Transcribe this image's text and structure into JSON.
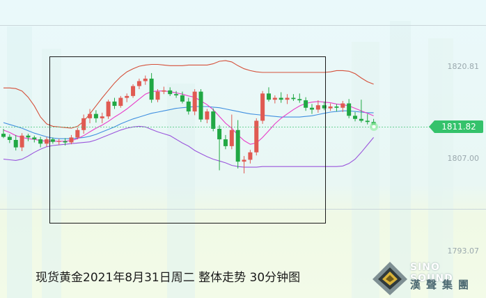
{
  "caption": "现货黄金2021年8月31日周二 整体走势 30分钟图",
  "price_labels": {
    "top": "1820.81",
    "mid": "1807.00",
    "bottom": "1793.07"
  },
  "current_price": "1811.82",
  "logo": {
    "en": "SINO SOUND",
    "cn": "漢聲集團"
  },
  "colors": {
    "up": "#e05a52",
    "down": "#21a844",
    "upper_band": "#d5503a",
    "mid_band": "#3f8fe0",
    "lower_band": "#9a55dc",
    "ma": "#e83cc8",
    "ma_alt": "#f08a5c",
    "price_tag": "#34c26b"
  },
  "chart_data": {
    "type": "candlestick",
    "title": "现货黄金2021年8月31日周二 整体走势 30分钟图",
    "ylabels": [
      1820.81,
      1807.0,
      1793.07
    ],
    "ylim": [
      1790.4,
      1827.5
    ],
    "current_price": 1811.82,
    "indicators": [
      "upper_band",
      "mid_band",
      "lower_band",
      "moving_average"
    ],
    "candles": [
      [
        1810.4,
        1811.2,
        1809.7,
        1809.9
      ],
      [
        1809.9,
        1810.3,
        1808.9,
        1809.4
      ],
      [
        1809.4,
        1810.2,
        1807.7,
        1808.2
      ],
      [
        1808.2,
        1810.5,
        1807.6,
        1810.1
      ],
      [
        1810.1,
        1810.4,
        1809.2,
        1809.8
      ],
      [
        1809.8,
        1810.1,
        1809.0,
        1809.5
      ],
      [
        1809.5,
        1809.9,
        1808.2,
        1808.8
      ],
      [
        1808.8,
        1809.9,
        1808.3,
        1809.5
      ],
      [
        1809.5,
        1809.8,
        1808.8,
        1809.1
      ],
      [
        1809.1,
        1809.6,
        1808.6,
        1809.2
      ],
      [
        1809.2,
        1809.7,
        1808.5,
        1809.0
      ],
      [
        1809.0,
        1810.2,
        1808.7,
        1809.8
      ],
      [
        1809.8,
        1811.4,
        1809.5,
        1811.0
      ],
      [
        1811.0,
        1813.5,
        1810.4,
        1812.9
      ],
      [
        1812.9,
        1814.4,
        1812.1,
        1813.6
      ],
      [
        1813.6,
        1814.2,
        1812.2,
        1812.9
      ],
      [
        1812.9,
        1813.8,
        1812.1,
        1813.2
      ],
      [
        1813.2,
        1815.9,
        1812.8,
        1815.6
      ],
      [
        1815.6,
        1816.2,
        1814.4,
        1814.9
      ],
      [
        1814.9,
        1816.5,
        1814.6,
        1816.2
      ],
      [
        1816.2,
        1816.9,
        1815.5,
        1816.5
      ],
      [
        1816.5,
        1818.4,
        1816.2,
        1818.1
      ],
      [
        1818.1,
        1819.3,
        1817.6,
        1818.9
      ],
      [
        1818.9,
        1819.8,
        1818.3,
        1819.3
      ],
      [
        1819.3,
        1820.2,
        1815.4,
        1815.9
      ],
      [
        1815.9,
        1817.6,
        1815.5,
        1817.2
      ],
      [
        1817.2,
        1818.0,
        1816.8,
        1817.4
      ],
      [
        1817.4,
        1817.9,
        1816.5,
        1816.8
      ],
      [
        1816.8,
        1817.3,
        1816.2,
        1816.6
      ],
      [
        1816.6,
        1817.2,
        1815.3,
        1815.6
      ],
      [
        1815.6,
        1816.2,
        1813.5,
        1814.0
      ],
      [
        1814.0,
        1817.6,
        1813.4,
        1817.2
      ],
      [
        1817.2,
        1817.6,
        1812.3,
        1812.7
      ],
      [
        1812.7,
        1814.4,
        1812.1,
        1814.0
      ],
      [
        1814.0,
        1814.5,
        1810.8,
        1811.2
      ],
      [
        1811.2,
        1811.8,
        1804.5,
        1809.5
      ],
      [
        1809.5,
        1810.2,
        1807.9,
        1808.4
      ],
      [
        1808.4,
        1813.5,
        1807.9,
        1811.0
      ],
      [
        1811.0,
        1812.6,
        1804.8,
        1805.9
      ],
      [
        1805.9,
        1806.8,
        1804.0,
        1806.2
      ],
      [
        1806.2,
        1807.8,
        1805.6,
        1807.4
      ],
      [
        1807.4,
        1812.9,
        1806.9,
        1812.5
      ],
      [
        1812.5,
        1817.3,
        1812.0,
        1816.9
      ],
      [
        1816.9,
        1817.9,
        1815.6,
        1815.9
      ],
      [
        1815.9,
        1816.6,
        1815.3,
        1816.2
      ],
      [
        1816.2,
        1817.1,
        1815.4,
        1815.9
      ],
      [
        1815.9,
        1816.8,
        1815.2,
        1816.2
      ],
      [
        1816.2,
        1816.8,
        1815.7,
        1816.0
      ],
      [
        1816.0,
        1816.9,
        1815.4,
        1815.8
      ],
      [
        1815.8,
        1816.3,
        1814.1,
        1814.6
      ],
      [
        1814.6,
        1815.2,
        1813.6,
        1814.3
      ],
      [
        1814.3,
        1815.8,
        1813.8,
        1815.0
      ],
      [
        1815.0,
        1815.6,
        1814.2,
        1814.5
      ],
      [
        1814.5,
        1815.3,
        1814.1,
        1814.8
      ],
      [
        1814.8,
        1815.2,
        1814.0,
        1814.6
      ],
      [
        1814.6,
        1815.7,
        1813.9,
        1815.3
      ],
      [
        1815.3,
        1816.0,
        1812.9,
        1813.3
      ],
      [
        1813.3,
        1813.9,
        1812.4,
        1812.8
      ],
      [
        1812.8,
        1815.9,
        1812.2,
        1812.5
      ],
      [
        1812.5,
        1813.6,
        1811.9,
        1812.3
      ],
      [
        1812.3,
        1812.8,
        1811.5,
        1811.82
      ]
    ],
    "upper_band": [
      1817.8,
      1817.8,
      1817.7,
      1817.3,
      1816.3,
      1814.9,
      1813.1,
      1812.0,
      1811.6,
      1811.5,
      1811.4,
      1811.3,
      1811.6,
      1812.4,
      1813.6,
      1814.9,
      1816.2,
      1817.4,
      1818.6,
      1819.6,
      1820.4,
      1820.9,
      1821.3,
      1821.5,
      1821.6,
      1821.6,
      1821.5,
      1821.4,
      1821.4,
      1821.4,
      1821.5,
      1821.5,
      1821.5,
      1821.5,
      1821.7,
      1822.1,
      1822.2,
      1822.0,
      1821.4,
      1820.9,
      1820.6,
      1820.4,
      1820.3,
      1820.3,
      1820.3,
      1820.3,
      1820.3,
      1820.3,
      1820.3,
      1820.3,
      1820.3,
      1820.3,
      1820.3,
      1820.4,
      1820.6,
      1820.6,
      1820.5,
      1820.1,
      1819.4,
      1818.8,
      1818.4
    ],
    "mid_band": [
      1812.2,
      1811.9,
      1811.6,
      1811.3,
      1810.9,
      1810.5,
      1810.2,
      1809.9,
      1809.7,
      1809.6,
      1809.6,
      1809.6,
      1809.7,
      1809.8,
      1810.0,
      1810.3,
      1810.7,
      1811.1,
      1811.5,
      1812.0,
      1812.4,
      1812.8,
      1813.1,
      1813.4,
      1813.7,
      1813.9,
      1814.1,
      1814.3,
      1814.5,
      1814.6,
      1814.7,
      1814.8,
      1814.8,
      1814.8,
      1814.7,
      1814.6,
      1814.4,
      1814.2,
      1814.0,
      1813.8,
      1813.6,
      1813.5,
      1813.4,
      1813.3,
      1813.2,
      1813.1,
      1813.1,
      1813.1,
      1813.1,
      1813.2,
      1813.3,
      1813.5,
      1813.7,
      1813.9,
      1814.0,
      1814.1,
      1814.1,
      1814.0,
      1813.9,
      1813.8,
      1813.8
    ],
    "lower_band": [
      1806.3,
      1806.2,
      1806.1,
      1806.3,
      1806.8,
      1807.4,
      1807.9,
      1808.3,
      1808.5,
      1808.6,
      1808.7,
      1808.8,
      1808.9,
      1809.0,
      1809.1,
      1809.4,
      1809.8,
      1810.2,
      1810.6,
      1811.0,
      1811.3,
      1811.5,
      1811.6,
      1811.5,
      1811.1,
      1810.7,
      1810.4,
      1810.1,
      1809.5,
      1808.9,
      1808.4,
      1807.7,
      1807.2,
      1806.7,
      1806.3,
      1806.0,
      1805.7,
      1805.3,
      1805.1,
      1805.0,
      1805.0,
      1805.0,
      1805.1,
      1805.1,
      1805.1,
      1805.1,
      1805.1,
      1805.1,
      1805.1,
      1805.1,
      1805.1,
      1805.1,
      1805.1,
      1805.1,
      1805.1,
      1805.2,
      1805.6,
      1806.3,
      1807.4,
      1808.6,
      1809.8
    ],
    "moving_average": [
      1811.0,
      1810.6,
      1810.1,
      1809.8,
      1809.6,
      1809.5,
      1809.3,
      1809.2,
      1809.2,
      1809.2,
      1809.2,
      1809.3,
      1809.6,
      1810.1,
      1810.7,
      1811.3,
      1811.8,
      1812.4,
      1813.1,
      1813.7,
      1814.4,
      1815.2,
      1816.0,
      1816.8,
      1817.2,
      1817.3,
      1817.3,
      1817.2,
      1817.0,
      1816.8,
      1816.5,
      1816.3,
      1815.7,
      1815.1,
      1814.3,
      1813.2,
      1812.1,
      1811.3,
      1810.2,
      1809.3,
      1808.7,
      1808.9,
      1809.8,
      1810.9,
      1812.0,
      1812.9,
      1813.6,
      1814.3,
      1814.9,
      1815.3,
      1815.5,
      1815.6,
      1815.5,
      1815.4,
      1815.2,
      1815.1,
      1814.9,
      1814.5,
      1814.1,
      1813.7,
      1813.3
    ]
  }
}
